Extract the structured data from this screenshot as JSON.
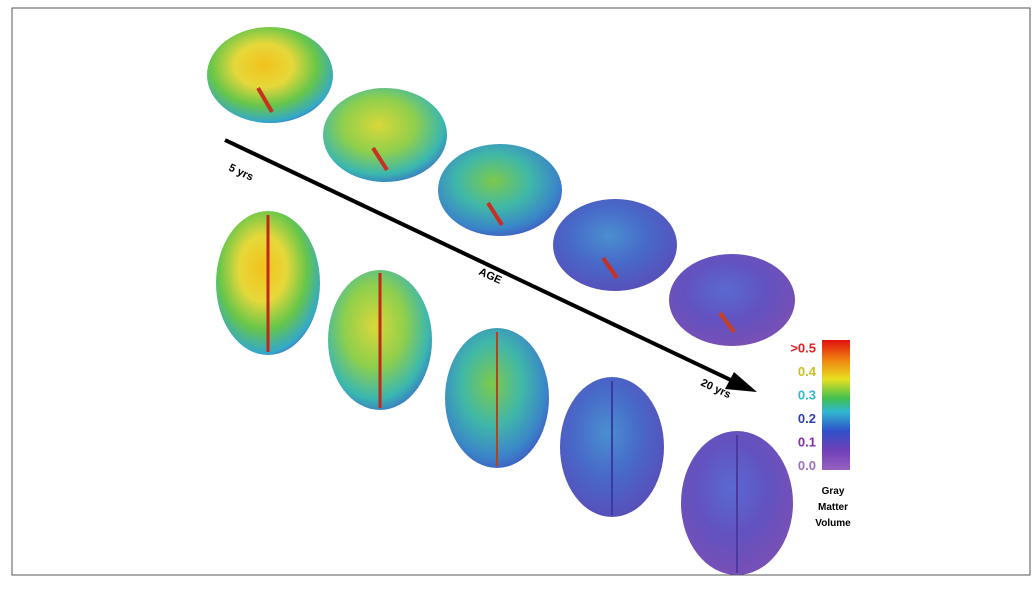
{
  "figure": {
    "arrow": {
      "start_label": "5 yrs",
      "middle_label": "AGE",
      "end_label": "20 yrs"
    },
    "legend": {
      "labels": [
        ">0.5",
        "0.4",
        "0.3",
        "0.2",
        "0.1",
        "0.0"
      ],
      "title": [
        "Gray",
        "Matter",
        "Volume"
      ]
    }
  }
}
